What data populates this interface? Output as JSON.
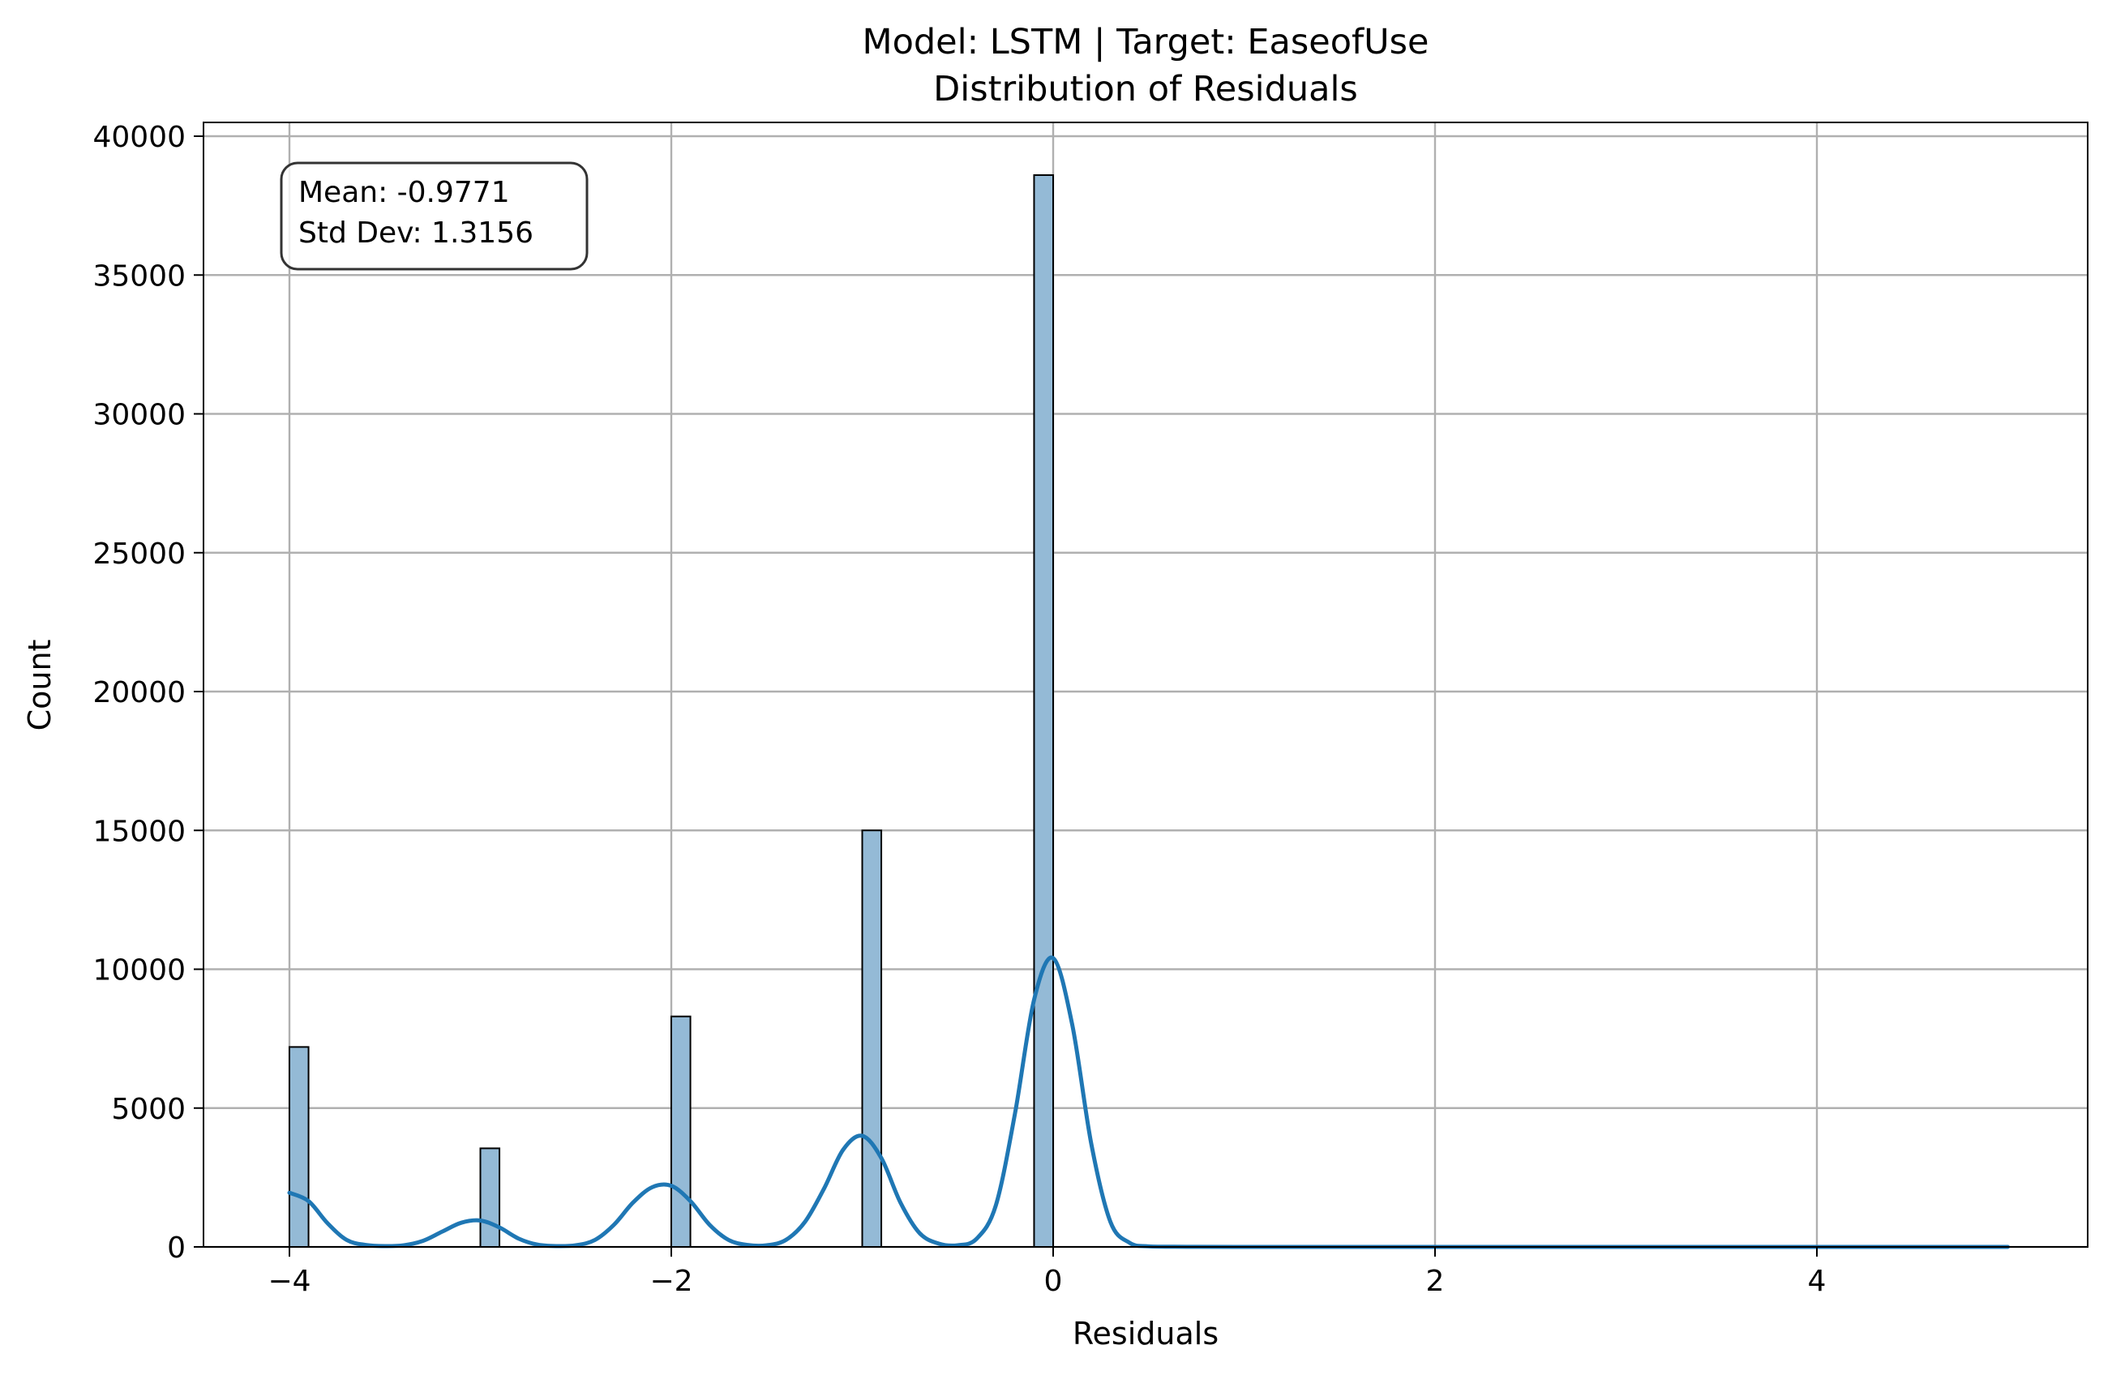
{
  "chart_data": {
    "type": "bar",
    "title": "Model: LSTM | Target: EaseofUse",
    "subtitle": "Distribution of Residuals",
    "xlabel": "Residuals",
    "ylabel": "Count",
    "xlim": [
      -4.5,
      5.5
    ],
    "ylim": [
      0,
      40500
    ],
    "x_ticks": [
      -4,
      -2,
      0,
      2,
      4
    ],
    "x_tick_labels": [
      "−4",
      "−2",
      "0",
      "2",
      "4"
    ],
    "y_ticks": [
      0,
      5000,
      10000,
      15000,
      20000,
      25000,
      30000,
      35000,
      40000
    ],
    "y_tick_labels": [
      "0",
      "5000",
      "10000",
      "15000",
      "20000",
      "25000",
      "30000",
      "35000",
      "40000"
    ],
    "grid": true,
    "bar_color": "#94bad6",
    "kde_color": "#1f77b4",
    "bins": [
      {
        "x_start": -4.0,
        "x_end": -3.9,
        "count": 7200
      },
      {
        "x_start": -3.0,
        "x_end": -2.9,
        "count": 3550
      },
      {
        "x_start": -2.0,
        "x_end": -1.9,
        "count": 8300
      },
      {
        "x_start": -1.0,
        "x_end": -0.9,
        "count": 15000
      },
      {
        "x_start": -0.1,
        "x_end": 0.0,
        "count": 38600
      }
    ],
    "kde": {
      "name": "KDE",
      "x": [
        -4.0,
        -3.9,
        -3.8,
        -3.7,
        -3.6,
        -3.5,
        -3.4,
        -3.3,
        -3.2,
        -3.1,
        -3.0,
        -2.9,
        -2.8,
        -2.7,
        -2.6,
        -2.5,
        -2.4,
        -2.3,
        -2.2,
        -2.1,
        -2.0,
        -1.9,
        -1.8,
        -1.7,
        -1.6,
        -1.5,
        -1.4,
        -1.3,
        -1.2,
        -1.1,
        -1.0,
        -0.9,
        -0.8,
        -0.7,
        -0.6,
        -0.5,
        -0.4,
        -0.3,
        -0.2,
        -0.1,
        0.0,
        0.1,
        0.2,
        0.3,
        0.4,
        0.5,
        0.7,
        1.0,
        2.0,
        3.0,
        4.0,
        5.0
      ],
      "y": [
        1950,
        1650,
        850,
        250,
        70,
        30,
        60,
        220,
        550,
        870,
        950,
        700,
        300,
        80,
        30,
        60,
        250,
        800,
        1600,
        2150,
        2200,
        1650,
        800,
        250,
        70,
        60,
        250,
        900,
        2100,
        3500,
        4000,
        3200,
        1600,
        500,
        120,
        60,
        300,
        1500,
        4800,
        8900,
        10400,
        8000,
        3700,
        900,
        150,
        20,
        5,
        0,
        0,
        0,
        0,
        0
      ]
    },
    "annotation": {
      "mean": "Mean: -0.9771",
      "std": "Std Dev: 1.3156"
    }
  }
}
